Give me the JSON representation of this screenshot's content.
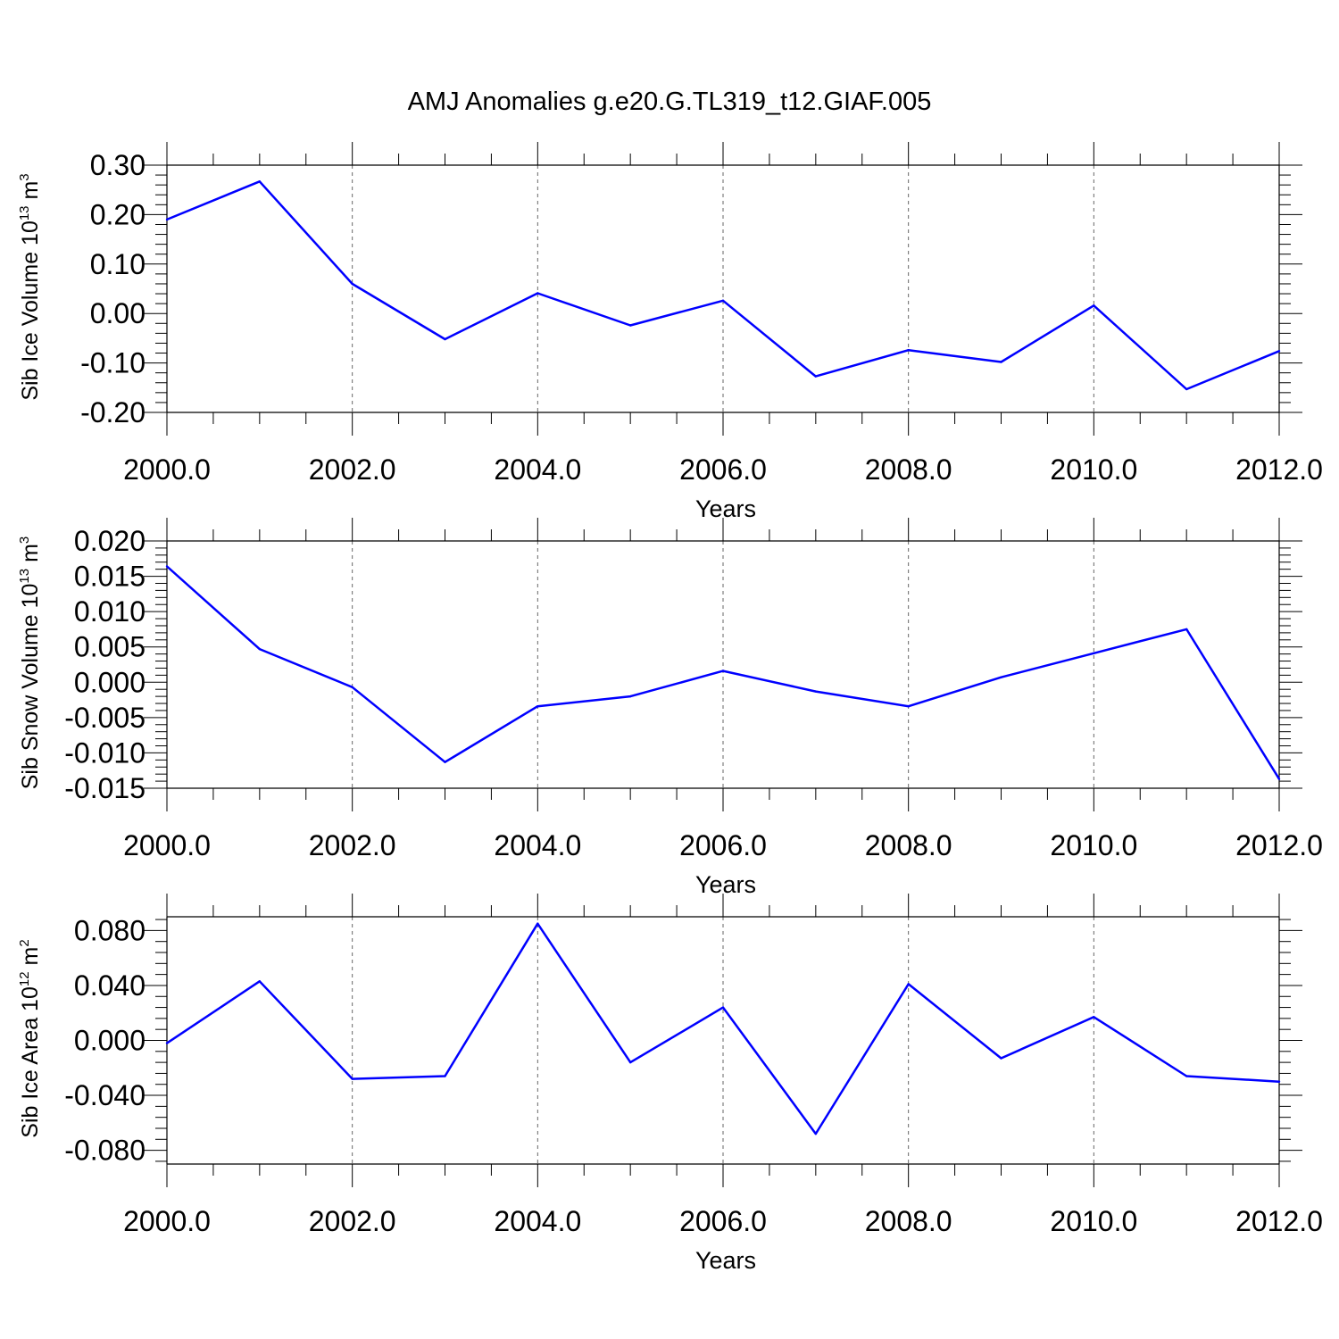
{
  "figure": {
    "title": "AMJ Anomalies g.e20.G.TL319_t12.GIAF.005"
  },
  "colors": {
    "line": "#0000ff",
    "axis": "#000000",
    "grid": "#666666"
  },
  "chart_data": [
    {
      "type": "line",
      "ylabel": "Sib Ice Volume 10",
      "ylabel_sup": "13",
      "ylabel_unit": " m",
      "ylabel_unit_sup": "3",
      "xlabel": "Years",
      "xlim": [
        2000,
        2012
      ],
      "ylim": [
        -0.2,
        0.3
      ],
      "x_ticks": [
        2000,
        2002,
        2004,
        2006,
        2008,
        2010,
        2012
      ],
      "x_tick_labels": [
        "2000.0",
        "2002.0",
        "2004.0",
        "2006.0",
        "2008.0",
        "2010.0",
        "2012.0"
      ],
      "y_ticks": [
        -0.2,
        -0.1,
        0.0,
        0.1,
        0.2,
        0.3
      ],
      "y_tick_labels": [
        "-0.20",
        "-0.10",
        "0.00",
        "0.10",
        "0.20",
        "0.30"
      ],
      "y_minor_step": 0.02,
      "x_minor_step": 0.5,
      "grid": "vertical dashed at major x ticks",
      "x": [
        2000,
        2001,
        2002,
        2003,
        2004,
        2005,
        2006,
        2007,
        2008,
        2009,
        2010,
        2011,
        2012
      ],
      "series": [
        {
          "values": [
            0.19,
            0.267,
            0.06,
            -0.052,
            0.041,
            -0.024,
            0.026,
            -0.127,
            -0.074,
            -0.098,
            0.016,
            -0.153,
            -0.076
          ]
        }
      ]
    },
    {
      "type": "line",
      "ylabel": "Sib Snow Volume 10",
      "ylabel_sup": "13",
      "ylabel_unit": " m",
      "ylabel_unit_sup": "3",
      "xlabel": "Years",
      "xlim": [
        2000,
        2012
      ],
      "ylim": [
        -0.015,
        0.02
      ],
      "x_ticks": [
        2000,
        2002,
        2004,
        2006,
        2008,
        2010,
        2012
      ],
      "x_tick_labels": [
        "2000.0",
        "2002.0",
        "2004.0",
        "2006.0",
        "2008.0",
        "2010.0",
        "2012.0"
      ],
      "y_ticks": [
        -0.015,
        -0.01,
        -0.005,
        0.0,
        0.005,
        0.01,
        0.015,
        0.02
      ],
      "y_tick_labels": [
        "-0.015",
        "-0.010",
        "-0.005",
        "0.000",
        "0.005",
        "0.010",
        "0.015",
        "0.020"
      ],
      "y_minor_step": 0.001,
      "x_minor_step": 0.5,
      "grid": "vertical dashed at major x ticks",
      "x": [
        2000,
        2001,
        2002,
        2003,
        2004,
        2005,
        2006,
        2007,
        2008,
        2009,
        2010,
        2011,
        2012
      ],
      "series": [
        {
          "values": [
            0.0164,
            0.0047,
            -0.0007,
            -0.0113,
            -0.0034,
            -0.002,
            0.0016,
            -0.0013,
            -0.0034,
            0.0007,
            0.0041,
            0.0075,
            -0.0137
          ]
        }
      ]
    },
    {
      "type": "line",
      "ylabel": "Sib Ice Area 10",
      "ylabel_sup": "12",
      "ylabel_unit": " m",
      "ylabel_unit_sup": "2",
      "xlabel": "Years",
      "xlim": [
        2000,
        2012
      ],
      "ylim": [
        -0.09,
        0.09
      ],
      "x_ticks": [
        2000,
        2002,
        2004,
        2006,
        2008,
        2010,
        2012
      ],
      "x_tick_labels": [
        "2000.0",
        "2002.0",
        "2004.0",
        "2006.0",
        "2008.0",
        "2010.0",
        "2012.0"
      ],
      "y_ticks": [
        -0.08,
        -0.04,
        0.0,
        0.04,
        0.08
      ],
      "y_tick_labels": [
        "-0.080",
        "-0.040",
        "0.000",
        "0.040",
        "0.080"
      ],
      "y_minor_step": 0.008,
      "x_minor_step": 0.5,
      "grid": "vertical dashed at major x ticks",
      "x": [
        2000,
        2001,
        2002,
        2003,
        2004,
        2005,
        2006,
        2007,
        2008,
        2009,
        2010,
        2011,
        2012
      ],
      "series": [
        {
          "values": [
            -0.002,
            0.043,
            -0.028,
            -0.026,
            0.085,
            -0.016,
            0.024,
            -0.068,
            0.041,
            -0.013,
            0.017,
            -0.026,
            -0.03
          ]
        }
      ]
    }
  ]
}
